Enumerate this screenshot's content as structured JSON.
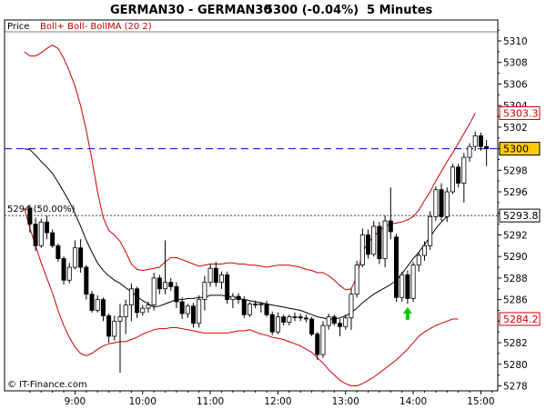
{
  "header": {
    "title": "GERMAN30 - GERMAN30",
    "quote": "5300 (-0.04%)",
    "timeframe": "5 Minutes"
  },
  "legend": {
    "price": "Price",
    "indicators": "Boll+ Boll- BollMA (20 2)"
  },
  "watermark": "© IT-Finance.com",
  "colors": {
    "upper_band": "#cc0000",
    "lower_band": "#cc0000",
    "ma": "#000000",
    "current_price_line": "#0000cc",
    "current_tag_bg": "#ffcc00",
    "arrow": "#00cc00"
  },
  "chart_data": {
    "type": "candlestick",
    "ylim": [
      5277,
      5311
    ],
    "y_ticks": [
      5278,
      5280,
      5282,
      5284,
      5286,
      5288,
      5290,
      5292,
      5294,
      5296,
      5298,
      5300,
      5302,
      5304,
      5306,
      5308,
      5310
    ],
    "x_tick_labels": [
      "9:00",
      "10:00",
      "11:00",
      "12:00",
      "13:00",
      "14:00",
      "15:00"
    ],
    "x_tick_index": [
      8,
      20,
      32,
      44,
      56,
      68,
      80
    ],
    "x_range_index": [
      -4.5,
      83
    ],
    "fib_line": {
      "value": 5293.8,
      "label": "5294 (50.00%)",
      "tag": "5293.8"
    },
    "current_price": {
      "value": 5300,
      "tag": "5300"
    },
    "upper_band_tag": {
      "value": 5303.3,
      "tag": "5303.3"
    },
    "lower_band_tag": {
      "value": 5284.2,
      "tag": "5284.2"
    },
    "arrow_signal": {
      "index": 67,
      "value": 5285.3
    },
    "candles": [
      [
        5294.5,
        5294.8,
        5292.2,
        5293.0
      ],
      [
        5293.0,
        5293.6,
        5290.5,
        5291.0
      ],
      [
        5291.0,
        5293.5,
        5290.8,
        5293.2
      ],
      [
        5293.2,
        5293.8,
        5291.6,
        5292.2
      ],
      [
        5292.2,
        5292.5,
        5290.8,
        5291.0
      ],
      [
        5291.0,
        5291.2,
        5289.5,
        5289.8
      ],
      [
        5289.8,
        5290.0,
        5287.4,
        5287.8
      ],
      [
        5287.8,
        5289.4,
        5287.5,
        5289.0
      ],
      [
        5289.0,
        5291.5,
        5288.8,
        5290.8
      ],
      [
        5290.8,
        5291.6,
        5288.5,
        5289.0
      ],
      [
        5289.0,
        5289.2,
        5286.0,
        5286.5
      ],
      [
        5286.5,
        5286.8,
        5284.8,
        5285.0
      ],
      [
        5285.0,
        5286.4,
        5284.8,
        5286.0
      ],
      [
        5286.0,
        5286.2,
        5284.0,
        5284.5
      ],
      [
        5284.5,
        5284.7,
        5282.0,
        5282.6
      ],
      [
        5282.6,
        5284.5,
        5282.2,
        5284.0
      ],
      [
        5284.0,
        5285.6,
        5279.2,
        5284.4
      ],
      [
        5284.4,
        5286.0,
        5282.8,
        5285.5
      ],
      [
        5285.5,
        5287.5,
        5284.0,
        5287.0
      ],
      [
        5287.0,
        5287.2,
        5284.3,
        5284.8
      ],
      [
        5284.8,
        5285.5,
        5284.5,
        5285.2
      ],
      [
        5285.2,
        5285.8,
        5284.8,
        5285.5
      ],
      [
        5285.5,
        5288.5,
        5285.0,
        5288.0
      ],
      [
        5288.0,
        5288.3,
        5286.5,
        5287.0
      ],
      [
        5287.0,
        5291.5,
        5286.5,
        5287.6
      ],
      [
        5287.6,
        5288.0,
        5286.8,
        5287.2
      ],
      [
        5287.2,
        5287.6,
        5285.2,
        5285.8
      ],
      [
        5285.8,
        5286.2,
        5284.2,
        5284.7
      ],
      [
        5284.7,
        5285.6,
        5284.3,
        5285.4
      ],
      [
        5285.4,
        5285.7,
        5283.4,
        5283.8
      ],
      [
        5283.8,
        5286.4,
        5283.4,
        5286.0
      ],
      [
        5286.0,
        5288.2,
        5285.0,
        5287.6
      ],
      [
        5287.6,
        5289.3,
        5287.2,
        5288.9
      ],
      [
        5288.9,
        5289.5,
        5287.2,
        5287.6
      ],
      [
        5287.6,
        5288.6,
        5287.0,
        5288.3
      ],
      [
        5288.3,
        5288.6,
        5285.6,
        5286.0
      ],
      [
        5286.0,
        5286.6,
        5285.2,
        5286.3
      ],
      [
        5286.3,
        5286.6,
        5285.6,
        5286.0
      ],
      [
        5286.0,
        5286.3,
        5284.3,
        5284.6
      ],
      [
        5284.6,
        5285.8,
        5284.4,
        5285.6
      ],
      [
        5285.6,
        5285.9,
        5285.2,
        5285.5
      ],
      [
        5285.5,
        5285.8,
        5284.8,
        5285.6
      ],
      [
        5285.6,
        5285.9,
        5284.4,
        5284.6
      ],
      [
        5284.6,
        5284.9,
        5282.7,
        5283.0
      ],
      [
        5283.0,
        5284.8,
        5282.8,
        5284.4
      ],
      [
        5284.4,
        5284.6,
        5283.6,
        5283.9
      ],
      [
        5283.9,
        5284.6,
        5283.6,
        5284.4
      ],
      [
        5284.4,
        5284.8,
        5284.0,
        5284.4
      ],
      [
        5284.4,
        5284.7,
        5284.0,
        5284.3
      ],
      [
        5284.3,
        5284.6,
        5283.9,
        5284.2
      ],
      [
        5284.2,
        5284.4,
        5282.6,
        5282.8
      ],
      [
        5282.8,
        5283.0,
        5280.4,
        5280.9
      ],
      [
        5280.9,
        5284.0,
        5280.6,
        5283.6
      ],
      [
        5283.6,
        5284.7,
        5283.2,
        5284.4
      ],
      [
        5284.4,
        5284.6,
        5283.6,
        5283.8
      ],
      [
        5283.8,
        5284.2,
        5282.6,
        5283.5
      ],
      [
        5283.5,
        5284.6,
        5283.2,
        5284.3
      ],
      [
        5284.3,
        5287.0,
        5283.2,
        5286.5
      ],
      [
        5286.5,
        5289.6,
        5286.2,
        5289.2
      ],
      [
        5289.2,
        5292.6,
        5289.0,
        5292.0
      ],
      [
        5292.0,
        5292.5,
        5289.8,
        5290.2
      ],
      [
        5290.2,
        5293.3,
        5290.0,
        5292.8
      ],
      [
        5292.8,
        5293.2,
        5289.3,
        5289.8
      ],
      [
        5289.8,
        5293.8,
        5289.0,
        5293.3
      ],
      [
        5293.3,
        5296.4,
        5291.6,
        5292.3
      ],
      [
        5291.8,
        5292.1,
        5285.8,
        5286.2
      ],
      [
        5286.2,
        5288.6,
        5285.8,
        5288.3
      ],
      [
        5288.3,
        5288.7,
        5285.6,
        5286.1
      ],
      [
        5286.1,
        5289.5,
        5285.8,
        5289.2
      ],
      [
        5289.2,
        5290.4,
        5288.6,
        5290.1
      ],
      [
        5290.1,
        5291.4,
        5289.6,
        5291.0
      ],
      [
        5291.0,
        5294.2,
        5290.6,
        5293.7
      ],
      [
        5293.7,
        5296.5,
        5293.3,
        5296.2
      ],
      [
        5296.2,
        5296.8,
        5293.3,
        5293.7
      ],
      [
        5293.7,
        5296.4,
        5293.2,
        5296.0
      ],
      [
        5296.0,
        5298.6,
        5295.8,
        5298.3
      ],
      [
        5298.3,
        5298.6,
        5296.4,
        5296.8
      ],
      [
        5296.8,
        5299.6,
        5295.0,
        5299.2
      ],
      [
        5299.2,
        5300.5,
        5298.8,
        5300.2
      ],
      [
        5300.2,
        5301.6,
        5299.8,
        5301.2
      ],
      [
        5301.2,
        5301.5,
        5299.8,
        5300.2
      ],
      [
        5300.2,
        5300.8,
        5298.4,
        5300.0
      ]
    ],
    "series": [
      {
        "name": "Boll+",
        "start_index": -1,
        "values": [
          5309.0,
          5308.6,
          5308.6,
          5308.9,
          5309.3,
          5309.6,
          5309.3,
          5308.4,
          5307.2,
          5305.8,
          5304.0,
          5301.7,
          5299.0,
          5296.0,
          5293.6,
          5292.4,
          5292.0,
          5291.4,
          5290.4,
          5289.3,
          5288.8,
          5288.7,
          5288.8,
          5288.9,
          5289.0,
          5289.5,
          5289.9,
          5289.9,
          5289.7,
          5289.5,
          5289.3,
          5289.1,
          5289.2,
          5289.3,
          5289.3,
          5289.3,
          5289.4,
          5289.4,
          5289.3,
          5289.3,
          5289.2,
          5289.2,
          5289.1,
          5289.0,
          5289.1,
          5289.2,
          5289.2,
          5289.2,
          5289.1,
          5289.0,
          5288.8,
          5288.7,
          5288.5,
          5288.5,
          5288.2,
          5287.8,
          5287.3,
          5286.9,
          5287.0,
          5288.1,
          5290.4,
          5291.3,
          5291.8,
          5292.4,
          5292.8,
          5293.0,
          5293.1,
          5293.2,
          5293.4,
          5293.7,
          5294.3,
          5295.2,
          5296.0,
          5297.0,
          5297.9,
          5298.8,
          5299.6,
          5300.5,
          5301.4,
          5302.3,
          5303.3
        ]
      },
      {
        "name": "BollMA",
        "start_index": -1,
        "values": [
          5300.0,
          5299.9,
          5299.4,
          5298.8,
          5298.3,
          5297.7,
          5296.9,
          5296.0,
          5295.1,
          5294.0,
          5292.8,
          5291.5,
          5290.4,
          5289.4,
          5288.7,
          5288.2,
          5287.8,
          5287.5,
          5287.1,
          5286.7,
          5286.3,
          5285.9,
          5285.6,
          5285.3,
          5285.4,
          5285.6,
          5285.8,
          5286.0,
          5286.0,
          5286.1,
          5286.1,
          5286.2,
          5286.2,
          5286.4,
          5286.4,
          5286.4,
          5286.3,
          5286.2,
          5286.1,
          5286.0,
          5285.9,
          5285.8,
          5285.7,
          5285.6,
          5285.5,
          5285.4,
          5285.3,
          5285.2,
          5285.1,
          5285.0,
          5284.8,
          5284.6,
          5284.4,
          5284.3,
          5284.2,
          5284.2,
          5284.3,
          5284.5,
          5284.8,
          5285.2,
          5285.7,
          5286.1,
          5286.5,
          5286.8,
          5287.1,
          5287.4,
          5287.8,
          5288.4,
          5289.1,
          5289.8,
          5290.4,
          5291.1,
          5291.8,
          5292.6,
          5293.2,
          5293.7
        ]
      },
      {
        "name": "Boll-",
        "start_index": -1,
        "values": [
          5294.5,
          5292.6,
          5291.0,
          5289.4,
          5288.0,
          5286.6,
          5285.0,
          5283.6,
          5282.5,
          5281.6,
          5281.0,
          5280.8,
          5281.0,
          5281.4,
          5281.7,
          5281.9,
          5282.0,
          5282.1,
          5282.1,
          5282.3,
          5282.5,
          5282.8,
          5283.0,
          5283.2,
          5283.3,
          5283.3,
          5283.4,
          5283.4,
          5283.3,
          5283.2,
          5283.1,
          5283.0,
          5282.9,
          5282.9,
          5282.9,
          5282.9,
          5282.9,
          5283.0,
          5283.1,
          5283.1,
          5283.2,
          5283.0,
          5282.8,
          5282.7,
          5282.5,
          5282.4,
          5282.3,
          5282.1,
          5281.9,
          5281.7,
          5281.4,
          5281.1,
          5280.6,
          5280.1,
          5279.5,
          5279.0,
          5278.5,
          5278.2,
          5278.0,
          5278.0,
          5278.2,
          5278.5,
          5278.8,
          5279.2,
          5279.6,
          5280.0,
          5280.4,
          5280.9,
          5281.4,
          5282.0,
          5282.6,
          5283.0,
          5283.3,
          5283.6,
          5283.8,
          5284.0,
          5284.2,
          5284.2
        ]
      }
    ]
  }
}
